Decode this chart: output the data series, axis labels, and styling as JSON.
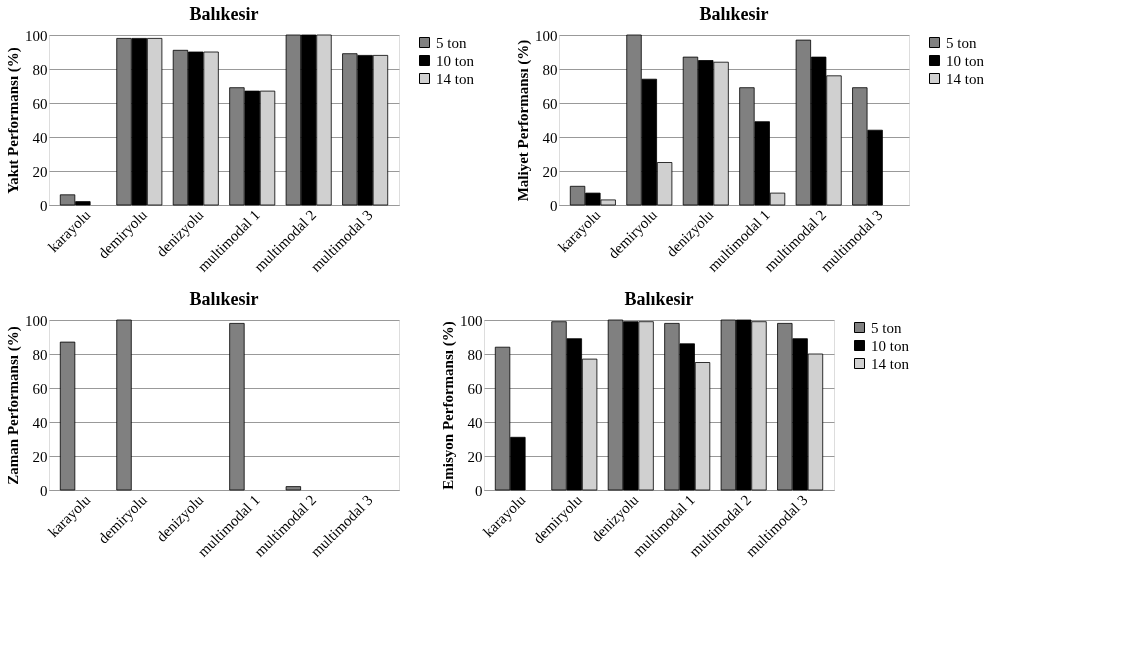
{
  "chart_data": [
    {
      "type": "bar",
      "title": "Balıkesir",
      "ylabel": "Yakıt Performansı (%)",
      "categories": [
        "karayolu",
        "demiryolu",
        "denizyolu",
        "multimodal 1",
        "multimodal 2",
        "multimodal 3"
      ],
      "ylim": [
        0,
        100
      ],
      "yticks": [
        0,
        20,
        40,
        60,
        80,
        100
      ],
      "grid": "y",
      "legend": "right",
      "series": [
        {
          "name": "5 ton",
          "color": "#808080",
          "values": [
            6,
            98,
            91,
            69,
            100,
            89
          ]
        },
        {
          "name": "10 ton",
          "color": "#000000",
          "values": [
            2,
            98,
            90,
            67,
            100,
            88
          ]
        },
        {
          "name": "14 ton",
          "color": "#d0d0d0",
          "values": [
            0,
            98,
            90,
            67,
            100,
            88
          ]
        }
      ]
    },
    {
      "type": "bar",
      "title": "Balıkesir",
      "ylabel": "Maliyet Performansı (%)",
      "categories": [
        "karayolu",
        "demiryolu",
        "denizyolu",
        "multimodal 1",
        "multimodal 2",
        "multimodal 3"
      ],
      "ylim": [
        0,
        100
      ],
      "yticks": [
        0,
        20,
        40,
        60,
        80,
        100
      ],
      "grid": "y",
      "legend": "right",
      "series": [
        {
          "name": "5 ton",
          "color": "#808080",
          "values": [
            11,
            100,
            87,
            69,
            97,
            69
          ]
        },
        {
          "name": "10 ton",
          "color": "#000000",
          "values": [
            7,
            74,
            85,
            49,
            87,
            44
          ]
        },
        {
          "name": "14 ton",
          "color": "#d0d0d0",
          "values": [
            3,
            25,
            84,
            7,
            76,
            0
          ]
        }
      ]
    },
    {
      "type": "bar",
      "title": "Balıkesir",
      "ylabel": "Zaman Performansı (%)",
      "categories": [
        "karayolu",
        "demiryolu",
        "denizyolu",
        "multimodal 1",
        "multimodal 2",
        "multimodal 3"
      ],
      "ylim": [
        0,
        100
      ],
      "yticks": [
        0,
        20,
        40,
        60,
        80,
        100
      ],
      "grid": "y",
      "legend": false,
      "series": [
        {
          "color": "#808080",
          "values": [
            87,
            100,
            0,
            98,
            2,
            0
          ]
        }
      ]
    },
    {
      "type": "bar",
      "title": "Balıkesir",
      "ylabel": "Emisyon Performansı (%)",
      "categories": [
        "karayolu",
        "demiryolu",
        "denizyolu",
        "multimodal 1",
        "multimodal 2",
        "multimodal 3"
      ],
      "ylim": [
        0,
        100
      ],
      "yticks": [
        0,
        20,
        40,
        60,
        80,
        100
      ],
      "grid": "y",
      "legend": "right",
      "series": [
        {
          "name": "5 ton",
          "color": "#808080",
          "values": [
            84,
            99,
            100,
            98,
            100,
            98
          ]
        },
        {
          "name": "10 ton",
          "color": "#000000",
          "values": [
            31,
            89,
            99,
            86,
            100,
            89
          ]
        },
        {
          "name": "14 ton",
          "color": "#d0d0d0",
          "values": [
            0,
            77,
            99,
            75,
            99,
            80
          ]
        }
      ]
    }
  ]
}
